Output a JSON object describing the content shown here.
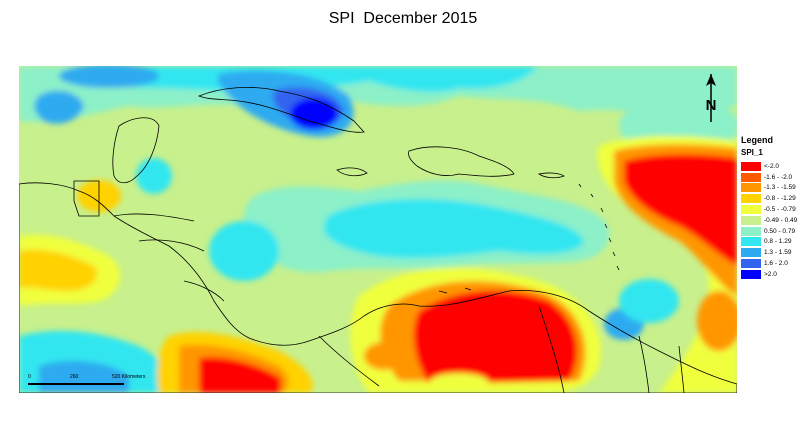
{
  "title": "SPI  December 2015",
  "legend": {
    "title": "Legend",
    "field": "SPI_1",
    "classes": [
      {
        "label": "<-2.0",
        "color": "#ff0000"
      },
      {
        "label": "-1.6 - -2.0",
        "color": "#ff5a00"
      },
      {
        "label": "-1.3 - -1.59",
        "color": "#ff9600"
      },
      {
        "label": "-0.8 - -1.29",
        "color": "#ffd200"
      },
      {
        "label": "-0.5 - -0.79",
        "color": "#f0ff3c"
      },
      {
        "label": "-0.49 - 0.49",
        "color": "#c8f08c"
      },
      {
        "label": "0.50 - 0.79",
        "color": "#8cf0c8"
      },
      {
        "label": "0.8 - 1.29",
        "color": "#32e6f0"
      },
      {
        "label": "1.3 - 1.59",
        "color": "#2daaf0"
      },
      {
        "label": "1.6 - 2.0",
        "color": "#3264f0"
      },
      {
        "label": ">2.0",
        "color": "#0000ff"
      }
    ]
  },
  "scalebar": {
    "ticks": [
      "0",
      "260",
      "520 Kilometers"
    ]
  },
  "north_arrow": {
    "label": "N",
    "icon": "north-arrow-icon"
  }
}
